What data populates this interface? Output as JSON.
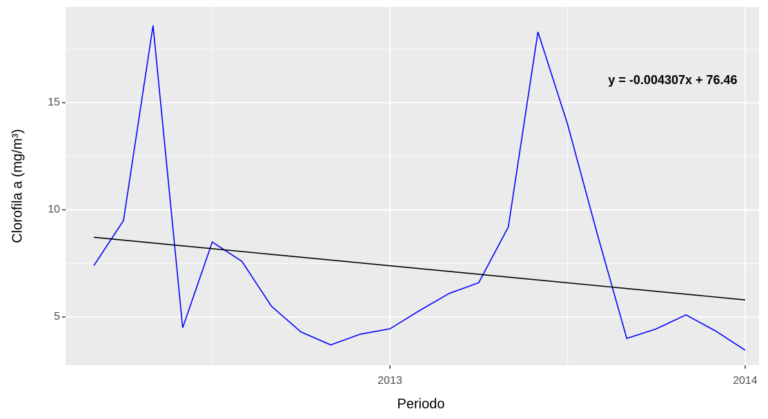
{
  "chart_data": {
    "type": "line",
    "x": [
      2012.1667,
      2012.25,
      2012.3333,
      2012.4167,
      2012.5,
      2012.5833,
      2012.6667,
      2012.75,
      2012.8333,
      2012.9167,
      2013.0,
      2013.0833,
      2013.1667,
      2013.25,
      2013.3333,
      2013.4167,
      2013.5,
      2013.5833,
      2013.6667,
      2013.75,
      2013.8333,
      2013.9167,
      2014.0
    ],
    "series": [
      {
        "color": "#0000ff",
        "values": [
          7.4,
          9.5,
          18.6,
          4.5,
          8.5,
          7.6,
          5.5,
          4.3,
          3.7,
          4.2,
          4.45,
          5.3,
          6.1,
          6.6,
          9.2,
          18.3,
          14.0,
          8.9,
          4.0,
          4.45,
          5.1,
          4.35,
          3.45
        ]
      }
    ],
    "trend": {
      "x": [
        2012.1667,
        2014.0
      ],
      "values": [
        8.72,
        5.8
      ],
      "color": "#000000"
    },
    "annotation": "y = -0.004307x + 76.46",
    "xlabel": "Periodo",
    "ylabel": "Clorofila a (mg/m³)",
    "xlim": [
      2012.087,
      2014.039
    ],
    "ylim": [
      2.75,
      19.47
    ],
    "xticks": [
      2013,
      2014
    ],
    "yticks": [
      5,
      10,
      15
    ],
    "xminor": [
      2012.5,
      2013.5
    ],
    "yminor": [
      7.5,
      12.5,
      17.5
    ],
    "grid": true
  }
}
